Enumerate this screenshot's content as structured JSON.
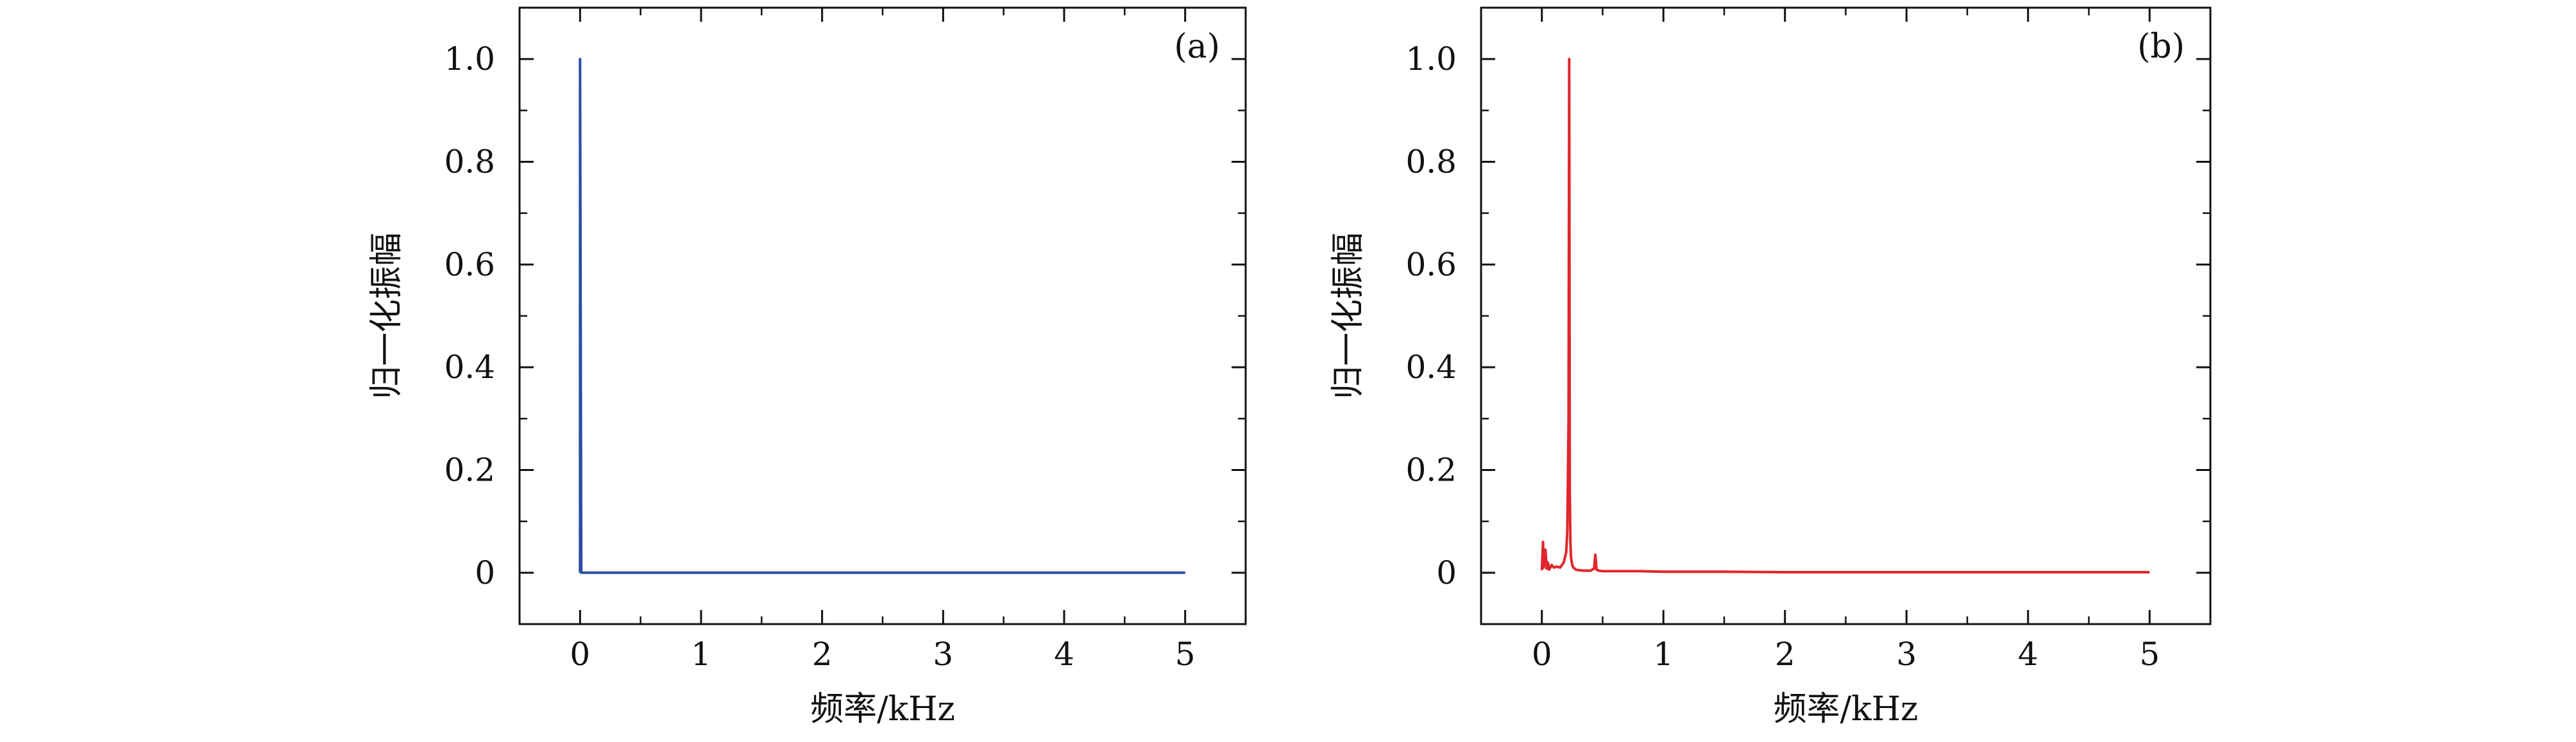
{
  "chart_data": [
    {
      "type": "line",
      "panel_label": "(a)",
      "xlabel": "频率/kHz",
      "ylabel": "归一化振幅",
      "xlim": [
        -0.5,
        5.5
      ],
      "ylim": [
        -0.1,
        1.1
      ],
      "x_ticks": [
        0,
        1,
        2,
        3,
        4,
        5
      ],
      "x_tick_labels": [
        "0",
        "1",
        "2",
        "3",
        "4",
        "5"
      ],
      "y_ticks": [
        0,
        0.2,
        0.4,
        0.6,
        0.8,
        1.0
      ],
      "y_tick_labels": [
        "0",
        "0.2",
        "0.4",
        "0.6",
        "0.8",
        "1.0"
      ],
      "grid": false,
      "color": "#2b4ea3",
      "series": [
        {
          "x": [
            0,
            0,
            0.01,
            5
          ],
          "y": [
            0,
            1.0,
            0,
            0
          ]
        }
      ]
    },
    {
      "type": "line",
      "panel_label": "(b)",
      "xlabel": "频率/kHz",
      "ylabel": "归一化振幅",
      "xlim": [
        -0.5,
        5.5
      ],
      "ylim": [
        -0.1,
        1.1
      ],
      "x_ticks": [
        0,
        1,
        2,
        3,
        4,
        5
      ],
      "x_tick_labels": [
        "0",
        "1",
        "2",
        "3",
        "4",
        "5"
      ],
      "y_ticks": [
        0,
        0.2,
        0.4,
        0.6,
        0.8,
        1.0
      ],
      "y_tick_labels": [
        "0",
        "0.2",
        "0.4",
        "0.6",
        "0.8",
        "1.0"
      ],
      "grid": false,
      "color": "#e0262b",
      "series": [
        {
          "x": [
            0.0,
            0.01,
            0.015,
            0.03,
            0.04,
            0.05,
            0.06,
            0.08,
            0.1,
            0.12,
            0.15,
            0.18,
            0.2,
            0.21,
            0.22,
            0.225,
            0.23,
            0.235,
            0.24,
            0.25,
            0.26,
            0.28,
            0.3,
            0.35,
            0.4,
            0.43,
            0.44,
            0.45,
            0.47,
            0.5,
            0.6,
            0.8,
            1.0,
            1.5,
            2.0,
            2.5,
            3.0,
            3.5,
            4.0,
            4.5,
            5.0
          ],
          "y": [
            0.005,
            0.06,
            0.01,
            0.045,
            0.008,
            0.02,
            0.006,
            0.015,
            0.01,
            0.012,
            0.01,
            0.02,
            0.04,
            0.08,
            0.3,
            1.0,
            0.16,
            0.06,
            0.03,
            0.015,
            0.01,
            0.006,
            0.005,
            0.004,
            0.004,
            0.008,
            0.035,
            0.006,
            0.004,
            0.003,
            0.003,
            0.003,
            0.002,
            0.002,
            0.001,
            0.001,
            0.001,
            0.001,
            0.001,
            0.001,
            0.001
          ]
        }
      ]
    }
  ]
}
